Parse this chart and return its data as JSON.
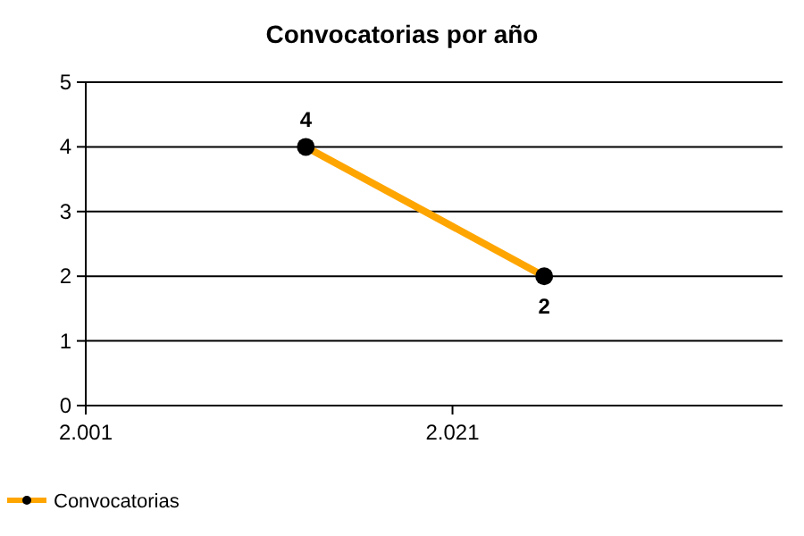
{
  "chart_data": {
    "type": "line",
    "title": "Convocatorias por año",
    "x": [
      2013,
      2026
    ],
    "series": [
      {
        "name": "Convocatorias",
        "color": "#ffa500",
        "values": [
          4,
          2
        ]
      }
    ],
    "xlim": [
      2001,
      2039
    ],
    "xticks": [
      {
        "value": 2001,
        "label": "2.001"
      },
      {
        "value": 2021,
        "label": "2.021"
      }
    ],
    "ylim": [
      0,
      5
    ],
    "yticks": [
      0,
      1,
      2,
      3,
      4,
      5
    ],
    "grid": "y",
    "marker": "circle",
    "data_labels": true,
    "legend": "bottom left"
  }
}
